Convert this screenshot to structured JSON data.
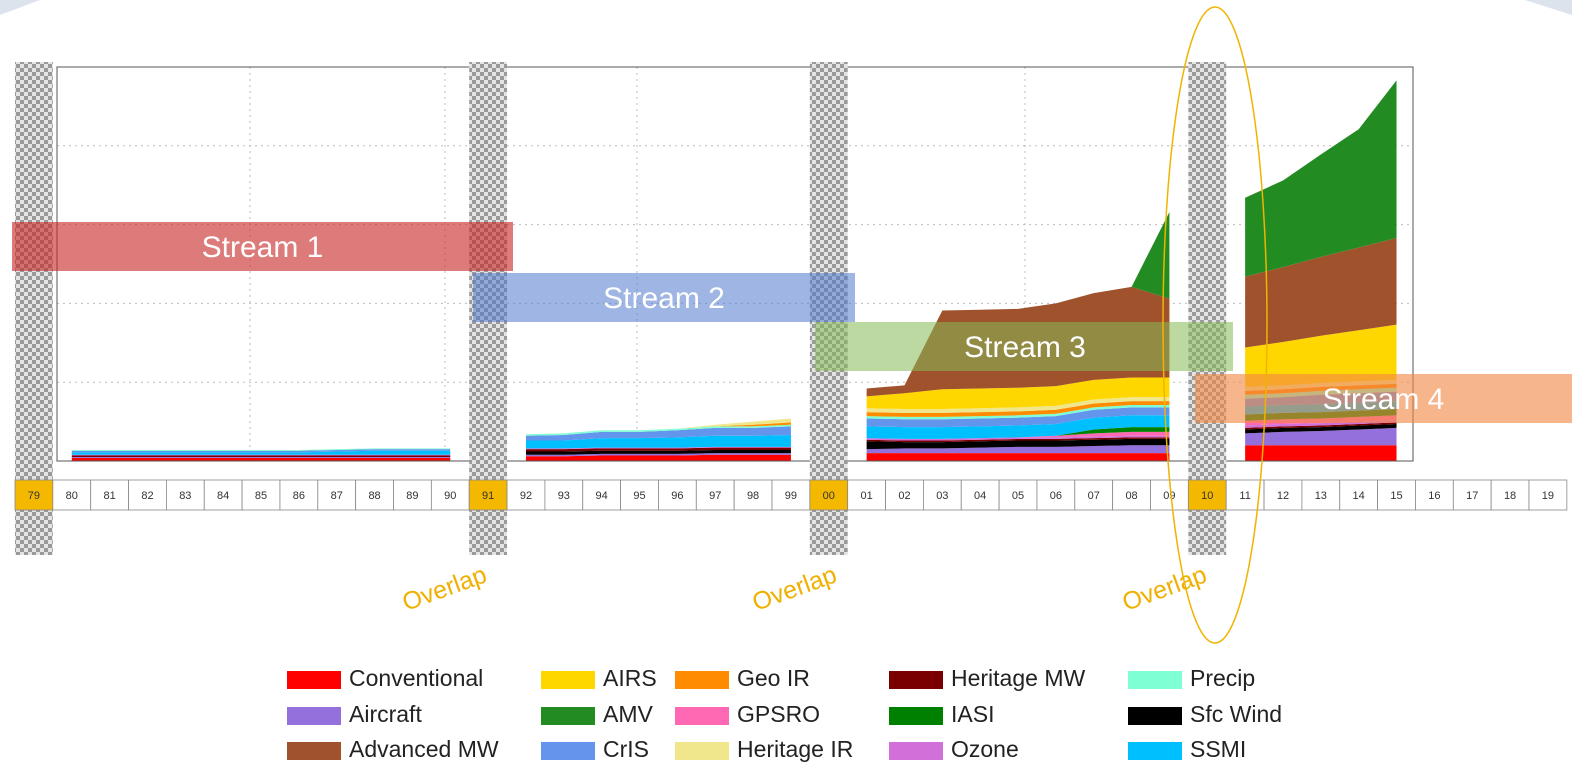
{
  "chart_data": {
    "type": "stacked_area",
    "categories": [
      "79",
      "80",
      "81",
      "82",
      "83",
      "84",
      "85",
      "86",
      "87",
      "88",
      "89",
      "90",
      "91",
      "92",
      "93",
      "94",
      "95",
      "96",
      "97",
      "98",
      "99",
      "00",
      "01",
      "02",
      "03",
      "04",
      "05",
      "06",
      "07",
      "08",
      "09",
      "10",
      "11",
      "12",
      "13",
      "14",
      "15",
      "16",
      "17",
      "18",
      "19"
    ],
    "ylim": [
      0,
      5
    ],
    "yticks": [
      0,
      1,
      2,
      3,
      4,
      5
    ],
    "grid": true,
    "series": [
      {
        "name": "Conventional",
        "color": "#ff0000",
        "values": [
          null,
          0.04,
          0.04,
          0.04,
          0.04,
          0.04,
          0.04,
          0.04,
          0.04,
          0.04,
          0.04,
          0.04,
          null,
          0.06,
          0.06,
          0.07,
          0.07,
          0.07,
          0.08,
          0.08,
          0.08,
          null,
          0.1,
          0.1,
          0.1,
          0.1,
          0.1,
          0.1,
          0.1,
          0.1,
          0.1,
          null,
          0.2,
          0.2,
          0.2,
          0.2,
          0.2,
          null,
          null,
          null,
          null
        ]
      },
      {
        "name": "Aircraft",
        "color": "#9370db",
        "values": [
          null,
          0.01,
          0.01,
          0.01,
          0.01,
          0.01,
          0.01,
          0.01,
          0.01,
          0.01,
          0.01,
          0.01,
          null,
          0.02,
          0.02,
          0.02,
          0.02,
          0.02,
          0.02,
          0.02,
          0.02,
          null,
          0.05,
          0.06,
          0.06,
          0.07,
          0.08,
          0.08,
          0.09,
          0.1,
          0.1,
          null,
          0.15,
          0.17,
          0.18,
          0.2,
          0.22,
          null,
          null,
          null,
          null
        ]
      },
      {
        "name": "Sfc Wind",
        "color": "#000000",
        "values": [
          null,
          0,
          0,
          0,
          0,
          0,
          0,
          0,
          0,
          0,
          0,
          0,
          null,
          0.04,
          0.04,
          0.04,
          0.04,
          0.04,
          0.04,
          0.04,
          0.04,
          null,
          0.1,
          0.08,
          0.08,
          0.08,
          0.08,
          0.08,
          0.08,
          0.08,
          0.08,
          null,
          0.05,
          0.05,
          0.05,
          0.05,
          0.05,
          null,
          null,
          null,
          null
        ]
      },
      {
        "name": "Heritage MW",
        "color": "#7a0000",
        "values": [
          null,
          0.02,
          0.02,
          0.02,
          0.02,
          0.02,
          0.02,
          0.02,
          0.02,
          0.02,
          0.02,
          0.02,
          null,
          0.03,
          0.03,
          0.03,
          0.03,
          0.03,
          0.03,
          0.03,
          0.03,
          null,
          0.02,
          0.02,
          0.02,
          0.02,
          0.02,
          0.02,
          0.02,
          0.02,
          0.02,
          null,
          0.02,
          0.02,
          0.02,
          0.02,
          0.02,
          null,
          null,
          null,
          null
        ]
      },
      {
        "name": "Ozone",
        "color": "#d070d8",
        "values": [
          null,
          0.01,
          0.01,
          0.01,
          0.01,
          0.01,
          0.01,
          0.01,
          0.01,
          0.01,
          0.01,
          0.01,
          null,
          0.01,
          0.01,
          0.01,
          0.01,
          0.01,
          0.01,
          0.01,
          0.01,
          null,
          0.02,
          0.02,
          0.02,
          0.02,
          0.02,
          0.02,
          0.02,
          0.02,
          0.02,
          null,
          0.03,
          0.03,
          0.03,
          0.03,
          0.03,
          null,
          null,
          null,
          null
        ]
      },
      {
        "name": "GPSRO",
        "color": "#ff69b4",
        "values": [
          null,
          0,
          0,
          0,
          0,
          0,
          0,
          0,
          0,
          0,
          0,
          0,
          null,
          0,
          0,
          0,
          0,
          0,
          0,
          0,
          0,
          null,
          0,
          0,
          0,
          0,
          0,
          0.02,
          0.04,
          0.05,
          0.05,
          null,
          0.06,
          0.06,
          0.06,
          0.06,
          0.06,
          null,
          null,
          null,
          null
        ]
      },
      {
        "name": "IASI",
        "color": "#008000",
        "values": [
          null,
          0,
          0,
          0,
          0,
          0,
          0,
          0,
          0,
          0,
          0,
          0,
          null,
          0,
          0,
          0,
          0,
          0,
          0,
          0,
          0,
          null,
          0,
          0,
          0,
          0,
          0,
          0,
          0.05,
          0.06,
          0.06,
          null,
          0.08,
          0.08,
          0.08,
          0.08,
          0.08,
          null,
          null,
          null,
          null
        ]
      },
      {
        "name": "SSMI",
        "color": "#00bfff",
        "values": [
          null,
          0.03,
          0.03,
          0.03,
          0.03,
          0.03,
          0.03,
          0.03,
          0.04,
          0.05,
          0.05,
          0.05,
          null,
          0.1,
          0.1,
          0.12,
          0.12,
          0.13,
          0.14,
          0.14,
          0.15,
          null,
          0.15,
          0.15,
          0.15,
          0.15,
          0.15,
          0.15,
          0.15,
          0.15,
          0.15,
          null,
          0.1,
          0.1,
          0.1,
          0.1,
          0.1,
          null,
          null,
          null,
          null
        ]
      },
      {
        "name": "CrIS",
        "color": "#6495ed",
        "values": [
          null,
          0.02,
          0.02,
          0.02,
          0.02,
          0.02,
          0.02,
          0.02,
          0.02,
          0.02,
          0.02,
          0.02,
          null,
          0.06,
          0.07,
          0.08,
          0.08,
          0.09,
          0.1,
          0.1,
          0.11,
          null,
          0.1,
          0.1,
          0.1,
          0.1,
          0.1,
          0.1,
          0.1,
          0.1,
          0.1,
          null,
          0.1,
          0.1,
          0.12,
          0.12,
          0.12,
          null,
          null,
          null,
          null
        ]
      },
      {
        "name": "Precip",
        "color": "#7fffd4",
        "values": [
          null,
          0.01,
          0.01,
          0.01,
          0.01,
          0.01,
          0.01,
          0.01,
          0.01,
          0.01,
          0.01,
          0.01,
          null,
          0.02,
          0.02,
          0.02,
          0.02,
          0.02,
          0.02,
          0.02,
          0.02,
          null,
          0.03,
          0.03,
          0.03,
          0.03,
          0.03,
          0.03,
          0.03,
          0.03,
          0.03,
          null,
          0.05,
          0.05,
          0.05,
          0.05,
          0.05,
          null,
          null,
          null,
          null
        ]
      },
      {
        "name": "Geo IR",
        "color": "#ff8c00",
        "values": [
          null,
          0,
          0,
          0,
          0,
          0,
          0,
          0,
          0,
          0,
          0,
          0,
          null,
          0,
          0,
          0,
          0,
          0,
          0,
          0.02,
          0.03,
          null,
          0.05,
          0.05,
          0.05,
          0.05,
          0.05,
          0.05,
          0.05,
          0.05,
          0.05,
          null,
          0.05,
          0.05,
          0.05,
          0.05,
          0.05,
          null,
          null,
          null,
          null
        ]
      },
      {
        "name": "Heritage IR",
        "color": "#f0e68c",
        "values": [
          null,
          0,
          0,
          0,
          0,
          0,
          0,
          0,
          0,
          0,
          0,
          0,
          null,
          0,
          0,
          0,
          0,
          0,
          0.02,
          0.04,
          0.05,
          null,
          0.05,
          0.05,
          0.05,
          0.05,
          0.05,
          0.05,
          0.05,
          0.05,
          0.05,
          null,
          0.05,
          0.05,
          0.05,
          0.05,
          0.05,
          null,
          null,
          null,
          null
        ]
      },
      {
        "name": "AIRS",
        "color": "#ffd700",
        "values": [
          null,
          0,
          0,
          0,
          0,
          0,
          0,
          0,
          0,
          0,
          0,
          0,
          null,
          0,
          0,
          0,
          0,
          0,
          0,
          0,
          0,
          null,
          0.15,
          0.2,
          0.25,
          0.25,
          0.25,
          0.25,
          0.25,
          0.25,
          0.25,
          null,
          0.5,
          0.55,
          0.6,
          0.65,
          0.7,
          null,
          null,
          null,
          null
        ]
      },
      {
        "name": "Advanced MW",
        "color": "#a0522d",
        "values": [
          null,
          0,
          0,
          0,
          0,
          0,
          0,
          0,
          0,
          0,
          0,
          0,
          null,
          0,
          0,
          0,
          0,
          0,
          0,
          0,
          0,
          null,
          0.1,
          0.1,
          1.0,
          1.0,
          1.0,
          1.05,
          1.1,
          1.15,
          1.0,
          null,
          0.9,
          0.95,
          1.0,
          1.05,
          1.1,
          null,
          null,
          null,
          null
        ]
      },
      {
        "name": "AMV",
        "color": "#228b22",
        "values": [
          null,
          0,
          0,
          0,
          0,
          0,
          0,
          0,
          0,
          0,
          0,
          0,
          null,
          0,
          0,
          0,
          0,
          0,
          0,
          0,
          0,
          null,
          0,
          0,
          0,
          0,
          0,
          0,
          0,
          0,
          1.1,
          null,
          1.0,
          1.1,
          1.3,
          1.5,
          2.0,
          null,
          null,
          null,
          null
        ]
      }
    ],
    "annotations": [
      "Stream 1",
      "Stream 2",
      "Stream 3",
      "Stream 4",
      "Overlap",
      "Overlap",
      "Overlap"
    ]
  }
}
